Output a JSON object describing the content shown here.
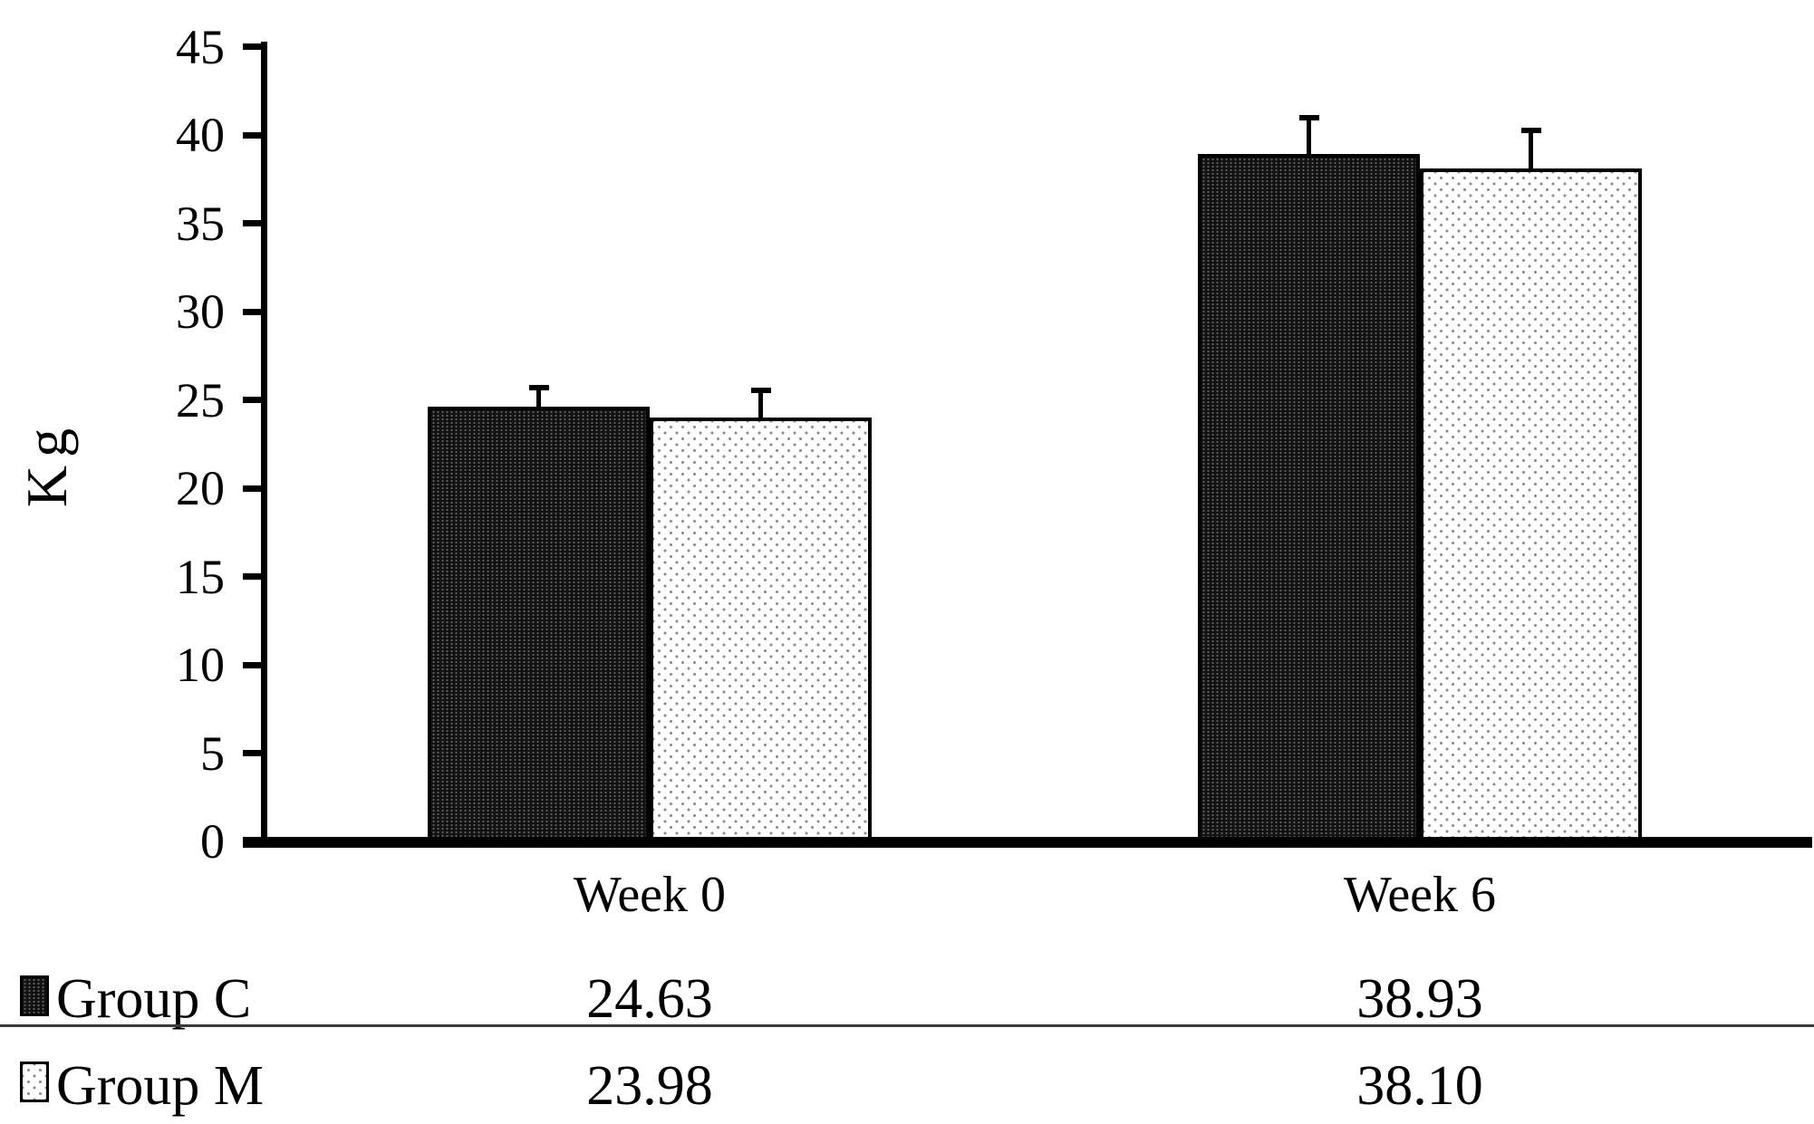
{
  "chart_data": {
    "type": "bar",
    "title": "",
    "ylabel": "Kg",
    "categories": [
      "Week 0",
      "Week 6"
    ],
    "series": [
      {
        "name": "Group C",
        "values": [
          24.63,
          38.93
        ],
        "errors": [
          0.9,
          1.9
        ],
        "style": "dark"
      },
      {
        "name": "Group M",
        "values": [
          23.98,
          38.1
        ],
        "errors": [
          1.4,
          2.0
        ],
        "style": "light"
      }
    ],
    "yticks": [
      0,
      5,
      10,
      15,
      20,
      25,
      30,
      35,
      40,
      45
    ],
    "ylim": [
      0,
      45
    ],
    "grid": false,
    "error_bars": "upper",
    "legend_position": "bottom-table",
    "colors": {
      "axis": "#000000",
      "bar_dark": "#131313",
      "bar_light": "#ffffff",
      "separator": "#3a3a3a",
      "text": "#000000",
      "background": "#ffffff"
    }
  },
  "table": {
    "rows": [
      {
        "label": "Group C",
        "week0": "24.63",
        "week6": "38.93"
      },
      {
        "label": "Group M",
        "week0": "23.98",
        "week6": "38.10"
      }
    ]
  }
}
